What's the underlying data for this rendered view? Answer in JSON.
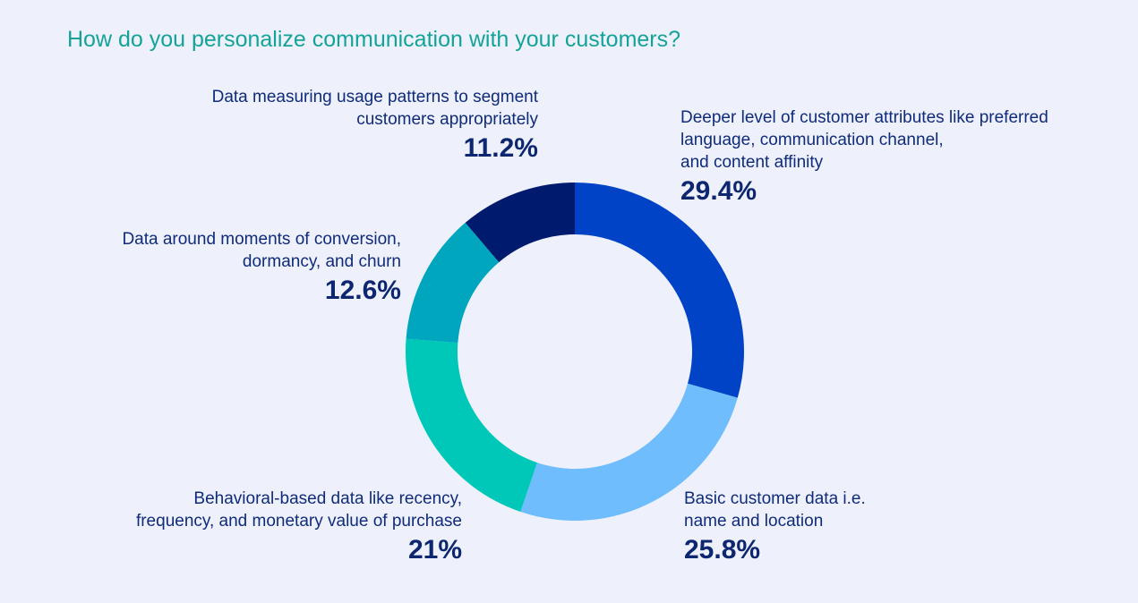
{
  "title": "How do you personalize communication with your customers?",
  "chart_data": {
    "type": "pie",
    "title": "How do you personalize communication with your customers?",
    "donut": true,
    "slices": [
      {
        "label": "Deeper level of customer attributes like preferred language, communication channel, and content affinity",
        "value": 29.4,
        "display": "29.4%",
        "color": "#0043c7"
      },
      {
        "label": "Basic customer data i.e. name and location",
        "value": 25.8,
        "display": "25.8%",
        "color": "#6fbdfd"
      },
      {
        "label": "Behavioral-based data like recency, frequency, and monetary value of purchase",
        "value": 21,
        "display": "21%",
        "color": "#00c8b8"
      },
      {
        "label": "Data around moments of conversion, dormancy, and churn",
        "value": 12.6,
        "display": "12.6%",
        "color": "#00a6bd"
      },
      {
        "label": "Data measuring usage patterns to segment customers appropriately",
        "value": 11.2,
        "display": "11.2%",
        "color": "#001a6e"
      }
    ]
  },
  "labels": {
    "deeper": {
      "line1": "Deeper level of customer attributes like preferred",
      "line2": "language, communication channel,",
      "line3": "and content affinity",
      "pct": "29.4%"
    },
    "basic": {
      "line1": "Basic customer data i.e.",
      "line2": "name and location",
      "pct": "25.8%"
    },
    "behavioral": {
      "line1": "Behavioral-based data like recency,",
      "line2": "frequency, and monetary value of purchase",
      "pct": "21%"
    },
    "conversion": {
      "line1": "Data around moments of conversion,",
      "line2": "dormancy, and churn",
      "pct": "12.6%"
    },
    "usage": {
      "line1": "Data measuring usage patterns to segment",
      "line2": "customers appropriately",
      "pct": "11.2%"
    }
  }
}
